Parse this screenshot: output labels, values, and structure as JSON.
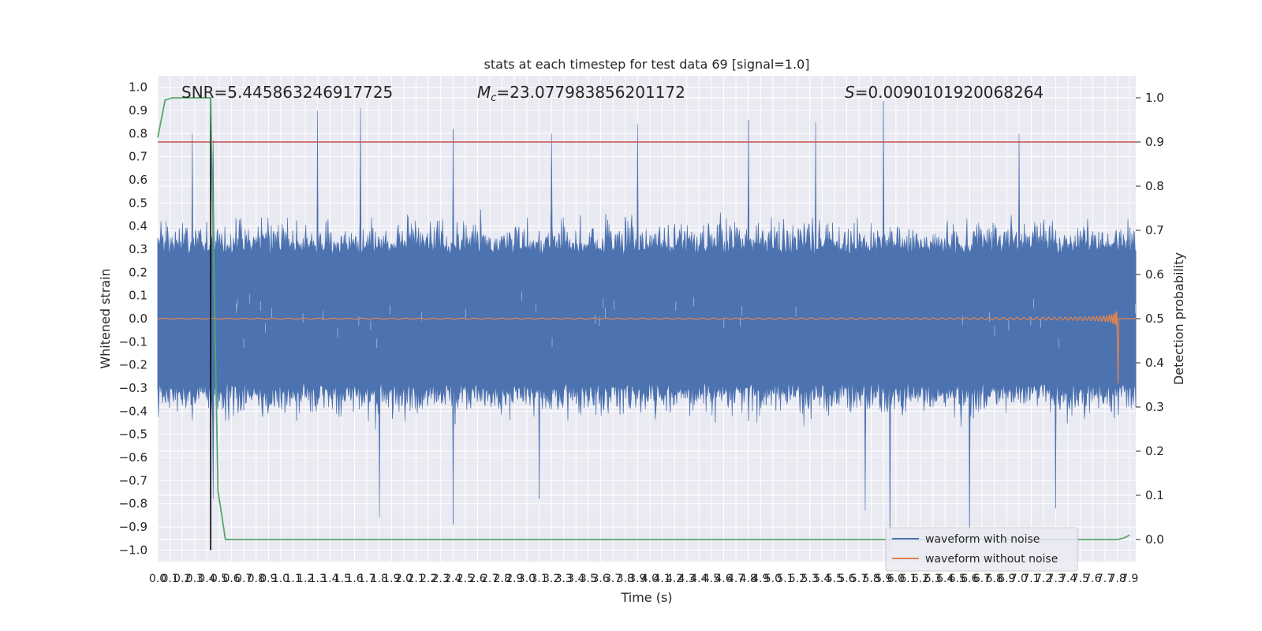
{
  "chart_data": {
    "type": "line",
    "title": "stats at each timestep for test data 69 [signal=1.0]",
    "xlabel": "Time (s)",
    "ylabel_left": "Whitened strain",
    "ylabel_right": "Detection probability",
    "xlim": [
      0.0,
      7.95
    ],
    "ylim_left": [
      -1.05,
      1.05
    ],
    "ylim_right": [
      -0.05,
      1.05
    ],
    "x_ticks": [
      "0.0",
      "0.1",
      "0.2",
      "0.3",
      "0.4",
      "0.5",
      "0.6",
      "0.7",
      "0.8",
      "0.9",
      "1.0",
      "1.1",
      "1.2",
      "1.3",
      "1.4",
      "1.5",
      "1.6",
      "1.7",
      "1.8",
      "1.9",
      "2.0",
      "2.1",
      "2.2",
      "2.3",
      "2.4",
      "2.5",
      "2.6",
      "2.7",
      "2.8",
      "2.9",
      "3.0",
      "3.1",
      "3.2",
      "3.3",
      "3.4",
      "3.5",
      "3.6",
      "3.7",
      "3.8",
      "3.9",
      "4.0",
      "4.1",
      "4.2",
      "4.3",
      "4.4",
      "4.5",
      "4.6",
      "4.7",
      "4.8",
      "4.9",
      "5.0",
      "5.1",
      "5.2",
      "5.3",
      "5.4",
      "5.5",
      "5.6",
      "5.7",
      "5.8",
      "5.9",
      "6.0",
      "6.1",
      "6.2",
      "6.3",
      "6.4",
      "6.5",
      "6.6",
      "6.7",
      "6.8",
      "6.9",
      "7.0",
      "7.1",
      "7.2",
      "7.3",
      "7.4",
      "7.5",
      "7.6",
      "7.7",
      "7.8",
      "7.9"
    ],
    "y_ticks_left": [
      "1.0",
      "0.9",
      "0.8",
      "0.7",
      "0.6",
      "0.5",
      "0.4",
      "0.3",
      "0.2",
      "0.1",
      "0.0",
      "-0.1",
      "-0.2",
      "-0.3",
      "-0.4",
      "-0.5",
      "-0.6",
      "-0.7",
      "-0.8",
      "-0.9",
      "-1.0"
    ],
    "y_ticks_right": [
      "1.0",
      "0.9",
      "0.8",
      "0.7",
      "0.6",
      "0.5",
      "0.4",
      "0.3",
      "0.2",
      "0.1",
      "0.0"
    ],
    "annotations": {
      "snr": "SNR=5.445863246917725",
      "mc": "=23.077983856201172",
      "s": "=0.0090101920068264"
    },
    "series": [
      {
        "name": "waveform with noise",
        "color": "#4c72b0",
        "axis": "left",
        "description": "dense noise envelope",
        "envelope_upper_typical": 0.45,
        "envelope_lower_typical": -0.45,
        "spikes": [
          {
            "x": 0.28,
            "y": 0.8
          },
          {
            "x": 0.45,
            "y": 0.77
          },
          {
            "x": 1.3,
            "y": 0.9
          },
          {
            "x": 1.65,
            "y": 0.91
          },
          {
            "x": 2.4,
            "y": 0.82
          },
          {
            "x": 3.2,
            "y": 0.8
          },
          {
            "x": 3.9,
            "y": 0.84
          },
          {
            "x": 4.8,
            "y": 0.86
          },
          {
            "x": 5.35,
            "y": 0.85
          },
          {
            "x": 5.9,
            "y": 0.94
          },
          {
            "x": 7.0,
            "y": 0.8
          },
          {
            "x": 0.45,
            "y": -0.78
          },
          {
            "x": 1.8,
            "y": -0.86
          },
          {
            "x": 2.4,
            "y": -0.89
          },
          {
            "x": 3.1,
            "y": -0.78
          },
          {
            "x": 5.75,
            "y": -0.83
          },
          {
            "x": 5.95,
            "y": -1.0
          },
          {
            "x": 6.6,
            "y": -0.94
          },
          {
            "x": 7.3,
            "y": -0.82
          }
        ]
      },
      {
        "name": "waveform without noise",
        "color": "#dd8452",
        "axis": "left",
        "description": "chirp increasing in amplitude and frequency",
        "chirp_peak_x": 7.8,
        "chirp_peak_amplitude": 0.3
      },
      {
        "name": "Detection probability",
        "color": "#55a868",
        "axis": "right",
        "x": [
          0.0,
          0.06,
          0.12,
          0.2,
          0.3,
          0.43,
          0.49,
          0.55,
          0.6,
          7.5,
          7.8,
          7.85,
          7.9
        ],
        "y": [
          0.91,
          0.995,
          1.0,
          1.0,
          1.0,
          1.0,
          0.11,
          0.0,
          0.0,
          0.0,
          0.0,
          0.003,
          0.01
        ]
      }
    ],
    "hlines": [
      {
        "name": "threshold",
        "axis": "right",
        "y": 0.9,
        "color": "#c44e52"
      }
    ],
    "vlines": [
      {
        "name": "detection-time",
        "x": 0.43,
        "color": "#000000"
      }
    ],
    "legend": {
      "location": "lower-right",
      "entries": [
        "waveform with noise",
        "waveform without noise"
      ]
    }
  }
}
